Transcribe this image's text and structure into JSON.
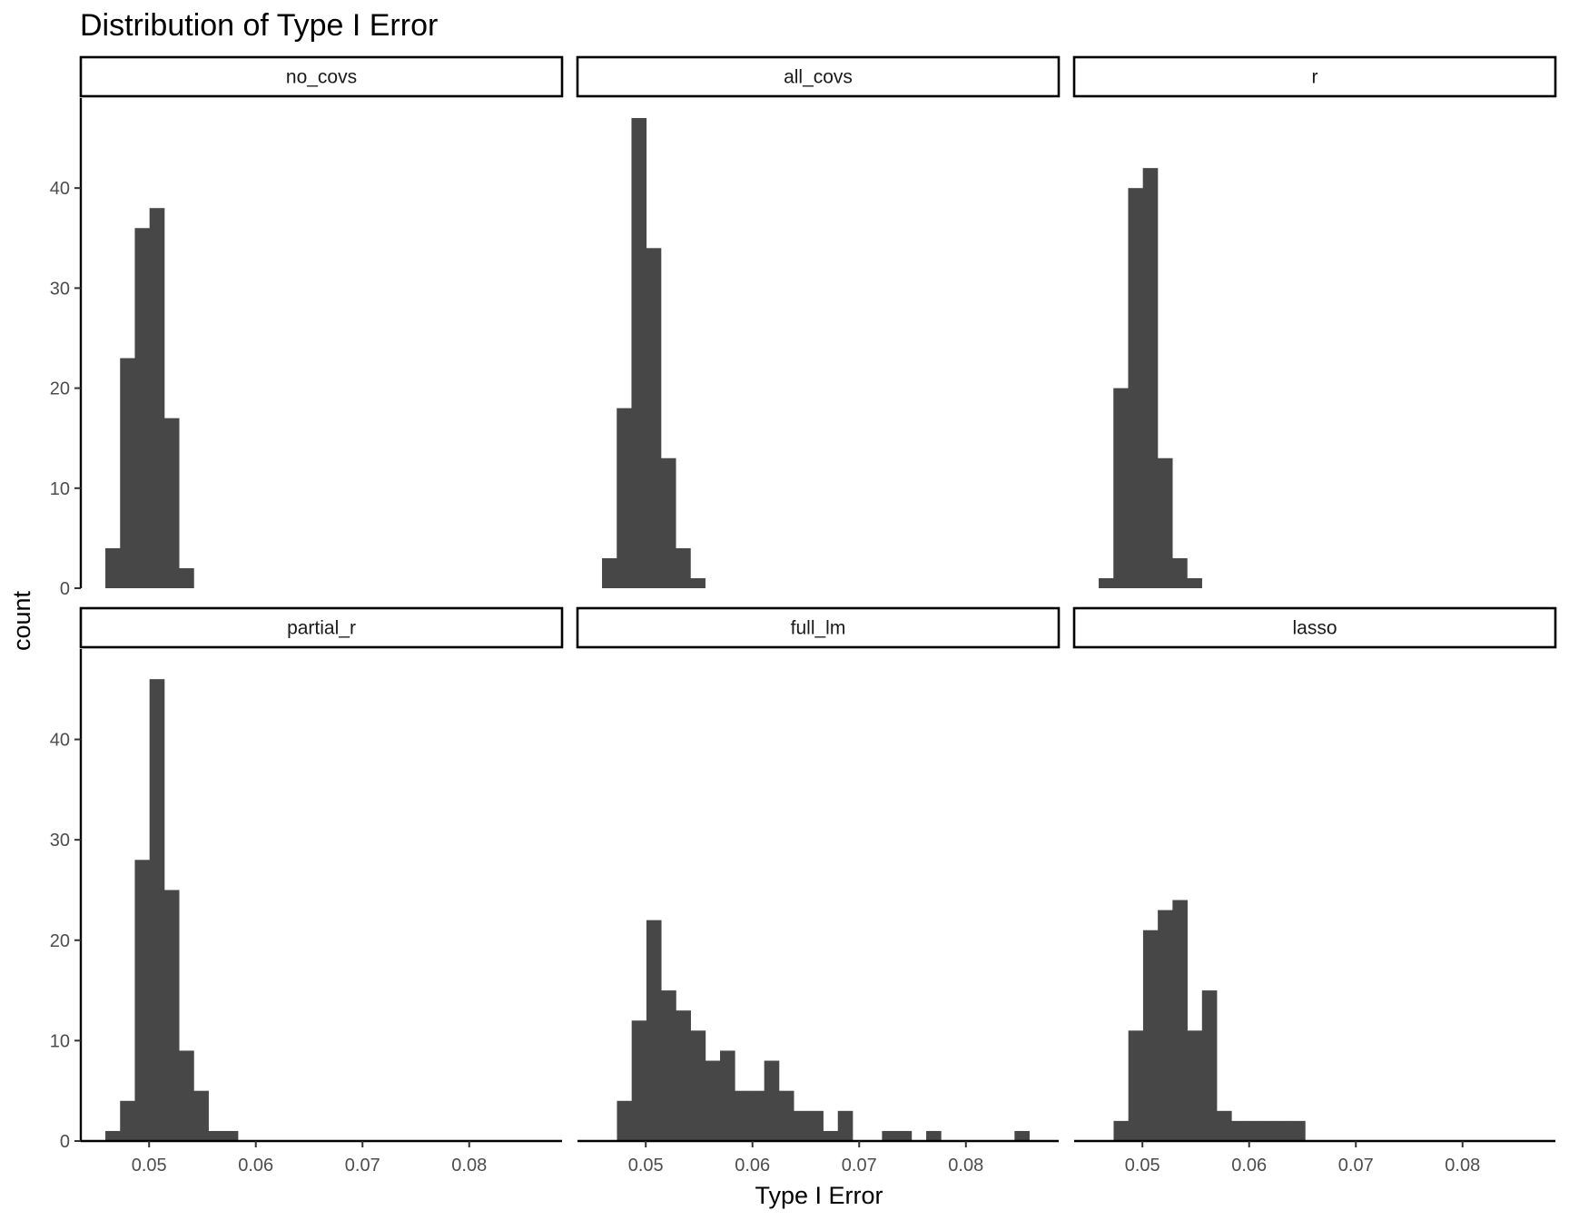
{
  "chart_data": {
    "type": "bar",
    "title": "Distribution of Type I Error",
    "xlabel": "Type I Error",
    "ylabel": "count",
    "xlim": [
      0.0436,
      0.0887
    ],
    "ylim": [
      0,
      49
    ],
    "bin_width": 0.00138,
    "x_ticks": [
      0.05,
      0.06,
      0.07,
      0.08
    ],
    "x_tick_labels": [
      "0.05",
      "0.06",
      "0.07",
      "0.08"
    ],
    "y_ticks": [
      0,
      10,
      20,
      30,
      40
    ],
    "y_tick_labels": [
      "0",
      "10",
      "20",
      "30",
      "40"
    ],
    "bar_color": "#474747",
    "grid": false,
    "panels": [
      {
        "name": "no_covs",
        "start": 0.0459,
        "counts": [
          4,
          23,
          36,
          38,
          17,
          2
        ]
      },
      {
        "name": "all_covs",
        "start": 0.0459,
        "counts": [
          3,
          18,
          47,
          34,
          13,
          4,
          1
        ]
      },
      {
        "name": "r",
        "start": 0.0459,
        "counts": [
          1,
          20,
          40,
          42,
          13,
          3,
          1
        ]
      },
      {
        "name": "partial_r",
        "start": 0.0459,
        "counts": [
          1,
          4,
          28,
          46,
          25,
          9,
          5,
          1,
          1
        ]
      },
      {
        "name": "full_lm",
        "start": 0.0473,
        "counts": [
          4,
          12,
          22,
          15,
          13,
          11,
          8,
          9,
          5,
          5,
          8,
          5,
          3,
          3,
          1,
          3,
          0,
          0,
          1,
          1,
          0,
          1,
          0,
          0,
          0,
          0,
          0,
          1
        ]
      },
      {
        "name": "lasso",
        "start": 0.0473,
        "counts": [
          2,
          11,
          21,
          23,
          24,
          11,
          15,
          3,
          2,
          2,
          2,
          2,
          2
        ]
      }
    ]
  }
}
